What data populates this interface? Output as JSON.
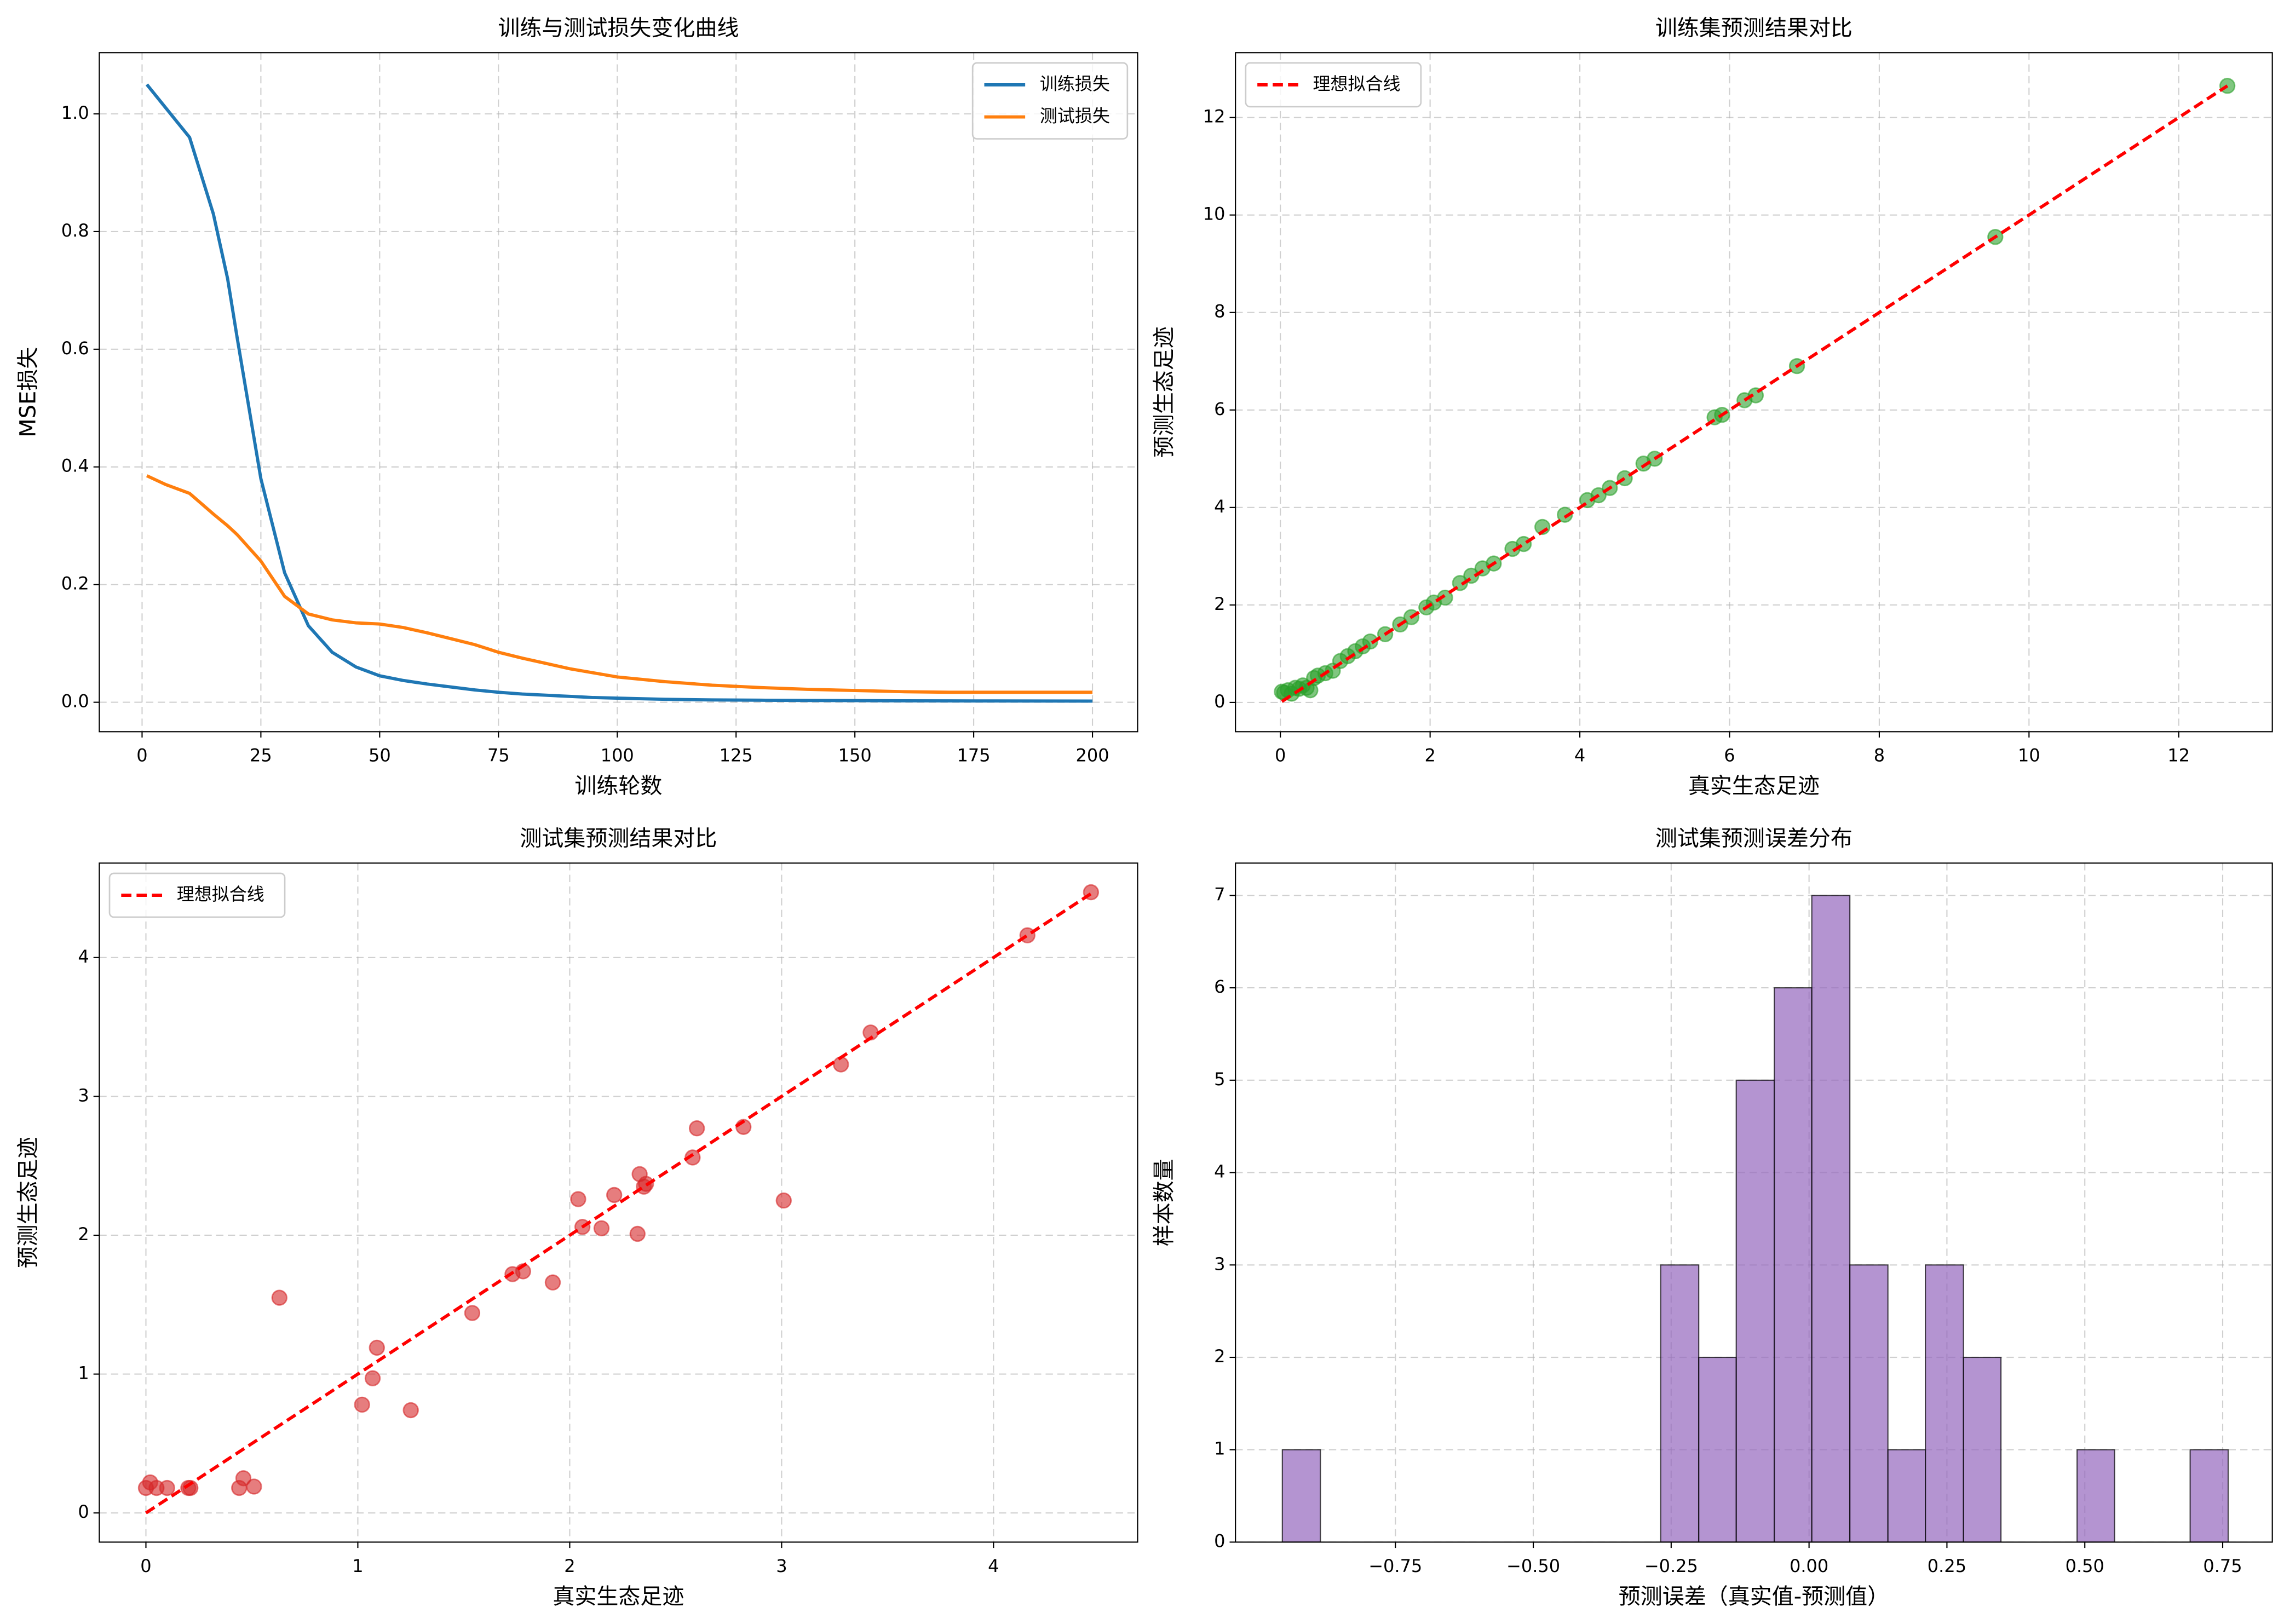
{
  "chart_data": [
    {
      "type": "line",
      "title": "训练与测试损失变化曲线",
      "x_label": "训练轮数",
      "y_label": "MSE损失",
      "x": [
        1,
        5,
        10,
        15,
        18,
        20,
        25,
        30,
        35,
        40,
        45,
        50,
        55,
        60,
        65,
        70,
        75,
        80,
        85,
        90,
        95,
        100,
        110,
        120,
        130,
        140,
        150,
        160,
        170,
        180,
        190,
        200
      ],
      "series": [
        {
          "name": "训练损失",
          "color": "#1f77b4",
          "values": [
            1.05,
            1.01,
            0.96,
            0.83,
            0.72,
            0.62,
            0.38,
            0.22,
            0.13,
            0.085,
            0.06,
            0.045,
            0.037,
            0.031,
            0.026,
            0.021,
            0.017,
            0.014,
            0.012,
            0.01,
            0.008,
            0.007,
            0.005,
            0.004,
            0.0035,
            0.003,
            0.0028,
            0.0025,
            0.0023,
            0.0022,
            0.0021,
            0.002
          ]
        },
        {
          "name": "测试损失",
          "color": "#ff7f0e",
          "values": [
            0.385,
            0.37,
            0.355,
            0.32,
            0.3,
            0.285,
            0.24,
            0.18,
            0.15,
            0.14,
            0.135,
            0.133,
            0.127,
            0.118,
            0.108,
            0.098,
            0.085,
            0.075,
            0.066,
            0.057,
            0.05,
            0.043,
            0.035,
            0.029,
            0.025,
            0.022,
            0.02,
            0.018,
            0.017,
            0.017,
            0.017,
            0.017
          ]
        }
      ],
      "xlim": [
        -9,
        209.5
      ],
      "ylim": [
        -0.05,
        1.104
      ],
      "xticks": [
        0,
        25,
        50,
        75,
        100,
        125,
        150,
        175,
        200
      ],
      "yticks": [
        {
          "value": 0,
          "label": "0.0"
        },
        {
          "value": 0.2,
          "label": "0.2"
        },
        {
          "value": 0.4,
          "label": "0.4"
        },
        {
          "value": 0.6,
          "label": "0.6"
        },
        {
          "value": 0.8,
          "label": "0.8"
        },
        {
          "value": 1,
          "label": "1.0"
        }
      ],
      "grid": true,
      "legend": "upper right"
    },
    {
      "type": "scatter",
      "title": "训练集预测结果对比",
      "x_label": "真实生态足迹",
      "y_label": "预测生态足迹",
      "points": {
        "color": "#2ca02c",
        "x": [
          0.02,
          0.05,
          0.1,
          0.15,
          0.2,
          0.25,
          0.3,
          0.35,
          0.4,
          0.45,
          0.5,
          0.6,
          0.7,
          0.8,
          0.9,
          1.0,
          1.1,
          1.2,
          1.4,
          1.6,
          1.75,
          1.95,
          2.05,
          2.2,
          2.4,
          2.55,
          2.7,
          2.85,
          3.1,
          3.25,
          3.5,
          3.8,
          4.1,
          4.25,
          4.4,
          4.6,
          4.85,
          5.0,
          5.8,
          5.9,
          6.2,
          6.35,
          6.9,
          9.55,
          12.65
        ],
        "y": [
          0.22,
          0.2,
          0.25,
          0.18,
          0.3,
          0.28,
          0.35,
          0.3,
          0.25,
          0.5,
          0.55,
          0.6,
          0.65,
          0.85,
          0.95,
          1.05,
          1.15,
          1.25,
          1.4,
          1.6,
          1.75,
          1.95,
          2.05,
          2.15,
          2.45,
          2.6,
          2.75,
          2.85,
          3.15,
          3.25,
          3.6,
          3.85,
          4.15,
          4.25,
          4.4,
          4.6,
          4.9,
          5.0,
          5.85,
          5.9,
          6.2,
          6.3,
          6.9,
          9.55,
          12.65
        ]
      },
      "reference_line": {
        "name": "理想拟合线",
        "color": "#ff0000",
        "x": [
          0.02,
          12.65
        ],
        "y": [
          0.02,
          12.65
        ]
      },
      "xlim": [
        -0.6,
        13.25
      ],
      "ylim": [
        -0.6,
        13.33
      ],
      "xticks": [
        0,
        2,
        4,
        6,
        8,
        10,
        12
      ],
      "yticks": [
        0,
        2,
        4,
        6,
        8,
        10,
        12
      ],
      "grid": true,
      "legend": "upper left"
    },
    {
      "type": "scatter",
      "title": "测试集预测结果对比",
      "x_label": "真实生态足迹",
      "y_label": "预测生态足迹",
      "points": {
        "color": "#d62728",
        "x": [
          0,
          0.02,
          0.05,
          0.1,
          0.2,
          0.21,
          0.44,
          0.46,
          0.51,
          0.63,
          1.02,
          1.07,
          1.09,
          1.25,
          1.54,
          1.73,
          1.78,
          1.92,
          2.04,
          2.06,
          2.15,
          2.21,
          2.32,
          2.33,
          2.35,
          2.36,
          2.58,
          2.6,
          2.82,
          3.01,
          3.28,
          3.42,
          4.16,
          4.46
        ],
        "y": [
          0.18,
          0.22,
          0.18,
          0.18,
          0.18,
          0.18,
          0.18,
          0.25,
          0.19,
          1.55,
          0.78,
          0.97,
          1.19,
          0.74,
          1.44,
          1.72,
          1.74,
          1.66,
          2.26,
          2.06,
          2.05,
          2.29,
          2.01,
          2.44,
          2.35,
          2.37,
          2.56,
          2.77,
          2.78,
          2.25,
          3.23,
          3.46,
          4.16,
          4.47
        ]
      },
      "reference_line": {
        "name": "理想拟合线",
        "color": "#ff0000",
        "x": [
          0,
          4.46
        ],
        "y": [
          0,
          4.46
        ]
      },
      "xlim": [
        -0.22,
        4.68
      ],
      "ylim": [
        -0.21,
        4.68
      ],
      "xticks": [
        0,
        1,
        2,
        3,
        4
      ],
      "yticks": [
        0,
        1,
        2,
        3,
        4
      ],
      "grid": true,
      "legend": "upper left"
    },
    {
      "type": "histogram",
      "title": "测试集预测误差分布",
      "x_label": "预测误差（真实值-预测值）",
      "y_label": "样本数量",
      "color": "#9467bd",
      "bins": [
        -0.955,
        -0.886,
        -0.818,
        -0.749,
        -0.681,
        -0.612,
        -0.543,
        -0.475,
        -0.406,
        -0.338,
        -0.269,
        -0.2,
        -0.132,
        -0.063,
        0.005,
        0.074,
        0.143,
        0.211,
        0.28,
        0.348,
        0.417,
        0.486,
        0.554,
        0.623,
        0.691,
        0.76
      ],
      "counts": [
        1,
        0,
        0,
        0,
        0,
        0,
        0,
        0,
        0,
        0,
        3,
        2,
        5,
        6,
        7,
        3,
        1,
        3,
        2,
        0,
        0,
        1,
        0,
        0,
        1
      ],
      "xlim": [
        -1.04,
        0.84
      ],
      "ylim": [
        0,
        7.35
      ],
      "xticks": [
        {
          "value": -0.75,
          "label": "−0.75"
        },
        {
          "value": -0.5,
          "label": "−0.50"
        },
        {
          "value": -0.25,
          "label": "−0.25"
        },
        {
          "value": 0,
          "label": "0.00"
        },
        {
          "value": 0.25,
          "label": "0.25"
        },
        {
          "value": 0.5,
          "label": "0.50"
        },
        {
          "value": 0.75,
          "label": "0.75"
        }
      ],
      "yticks": [
        0,
        1,
        2,
        3,
        4,
        5,
        6,
        7
      ],
      "grid": true
    }
  ]
}
